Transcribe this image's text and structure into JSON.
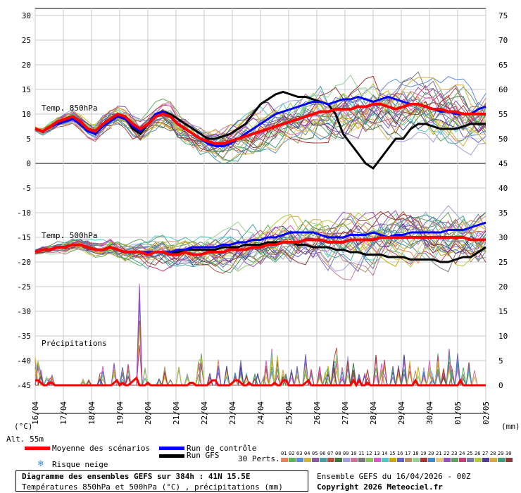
{
  "colors": {
    "mean": "#ff0000",
    "control": "#0000ff",
    "gfs": "#000000",
    "grid": "#c8c8c8",
    "zero_line": "#808080",
    "members": [
      "#e8825a",
      "#5ab45a",
      "#5a8cdc",
      "#d2b43c",
      "#8c5aa0",
      "#46a0a0",
      "#b4503c",
      "#3c783c",
      "#a0a0dc",
      "#c87896",
      "#787878",
      "#8cc85a",
      "#dc5ac8",
      "#50c8c8",
      "#c8aa00",
      "#6464c8",
      "#be8c64",
      "#96d296",
      "#aa3232",
      "#3c8cc8",
      "#e6c878",
      "#9650be",
      "#64a064",
      "#c83c78",
      "#7878aa",
      "#b4c83c",
      "#503c96",
      "#dcaa3c",
      "#3ca078",
      "#8c3c3c"
    ]
  },
  "chart_data": {
    "type": "line",
    "dates": [
      "16/04",
      "17/04",
      "18/04",
      "19/04",
      "20/04",
      "21/04",
      "22/04",
      "23/04",
      "24/04",
      "25/04",
      "26/04",
      "27/04",
      "28/04",
      "29/04",
      "30/04",
      "01/05",
      "02/05"
    ],
    "left_axis": {
      "unit": "(°C)",
      "ticks": [
        30,
        25,
        20,
        15,
        10,
        5,
        0,
        -5,
        -10,
        -15,
        -20,
        -25,
        -30,
        -35,
        -40,
        -45
      ],
      "range": [
        -45,
        30
      ]
    },
    "right_axis": {
      "unit": "(mm)",
      "ticks": [
        75,
        70,
        65,
        60,
        55,
        50,
        45,
        40,
        35,
        30,
        25,
        20,
        15,
        10,
        5,
        0
      ],
      "range": [
        0,
        75
      ]
    },
    "panels": [
      {
        "label": "Temp. 850hPa",
        "mean": [
          7,
          6.5,
          7.5,
          8.5,
          9,
          9.5,
          8.5,
          7,
          6.5,
          8,
          9,
          10,
          9.5,
          8,
          7,
          8,
          9.5,
          10,
          9.5,
          8,
          7,
          6,
          5,
          4.5,
          4,
          4,
          4.5,
          5,
          5.5,
          6,
          6.5,
          7,
          7.5,
          8,
          8.5,
          9,
          9.5,
          10,
          10.5,
          10.5,
          11,
          11,
          11,
          11.5,
          11.5,
          12,
          12,
          11.5,
          11,
          11.5,
          12,
          12,
          11.5,
          11,
          11,
          10.5,
          10.5,
          10,
          10,
          10,
          10
        ],
        "control": [
          7,
          6.5,
          7.5,
          8,
          8.5,
          9,
          8,
          6.5,
          6,
          7.5,
          8.5,
          9.5,
          9,
          7.5,
          6.5,
          8,
          10,
          10.5,
          9.5,
          8,
          7,
          6,
          5,
          4,
          3.5,
          3.5,
          4,
          5,
          6,
          7,
          8,
          9,
          10,
          10.5,
          11,
          11.5,
          12,
          12.5,
          12.5,
          12,
          12.5,
          13,
          13,
          13.5,
          13,
          12.5,
          13,
          13.5,
          13,
          12.5,
          12,
          12,
          11.5,
          11,
          10.5,
          10.5,
          10,
          10,
          10,
          11,
          11.5
        ],
        "gfs": [
          7,
          6.5,
          7.5,
          8,
          8.5,
          9,
          8,
          6.5,
          6,
          7.5,
          9,
          10,
          9.5,
          7,
          6,
          8,
          10,
          10.5,
          10,
          9,
          8,
          7,
          6,
          5,
          5,
          5.5,
          6,
          7,
          8,
          10,
          12,
          13,
          14,
          14.5,
          14,
          13.5,
          13.5,
          13,
          12.5,
          12,
          10,
          6,
          4,
          2,
          0,
          -1,
          1,
          3,
          5,
          5,
          7,
          8,
          8,
          7.5,
          7,
          7,
          7,
          7.5,
          8,
          8,
          8
        ]
      },
      {
        "label": "Temp. 500hPa",
        "mean": [
          -18,
          -17.5,
          -17.5,
          -17,
          -17,
          -16.5,
          -16.5,
          -17,
          -17.5,
          -17.5,
          -17,
          -17.5,
          -18,
          -18,
          -18,
          -18.5,
          -18,
          -18,
          -18.5,
          -18.5,
          -18,
          -18.5,
          -18.5,
          -18,
          -18,
          -18,
          -17.5,
          -17.5,
          -17.5,
          -17,
          -17,
          -16.5,
          -16.5,
          -16,
          -16,
          -16,
          -15.5,
          -15.5,
          -15.5,
          -16,
          -16,
          -16,
          -15.5,
          -15.5,
          -15.5,
          -15.5,
          -15,
          -15,
          -15,
          -15,
          -15,
          -15,
          -15,
          -15,
          -15,
          -15,
          -15,
          -15,
          -15.5,
          -15.5,
          -15.5
        ],
        "control": [
          -18,
          -17.5,
          -17.5,
          -17,
          -17,
          -16.5,
          -16.5,
          -17,
          -17.5,
          -17.5,
          -17,
          -17.5,
          -18,
          -18,
          -18,
          -18,
          -18,
          -18,
          -18,
          -17.5,
          -17.5,
          -17,
          -17,
          -17,
          -17,
          -16.5,
          -16.5,
          -16,
          -16,
          -15.5,
          -15.5,
          -15,
          -15,
          -14.5,
          -14,
          -14,
          -14,
          -14,
          -14.5,
          -15,
          -15,
          -15,
          -14.5,
          -14.5,
          -14.5,
          -14,
          -14.5,
          -15,
          -14.5,
          -14.5,
          -14,
          -14,
          -14,
          -14,
          -14,
          -13.5,
          -13.5,
          -13.5,
          -13,
          -12.5,
          -12
        ],
        "gfs": [
          -18,
          -17.5,
          -17.5,
          -17,
          -17,
          -16.5,
          -16.5,
          -17,
          -17.5,
          -17.5,
          -17,
          -17.5,
          -18,
          -18,
          -18,
          -18,
          -18,
          -18,
          -18,
          -18,
          -17.5,
          -17.5,
          -17.5,
          -17.5,
          -17.5,
          -17,
          -17,
          -17,
          -16.5,
          -16.5,
          -16.5,
          -16,
          -16,
          -16,
          -16,
          -16.5,
          -16.5,
          -17,
          -17,
          -17,
          -17.5,
          -17.5,
          -18,
          -18,
          -18.5,
          -18.5,
          -18.5,
          -19,
          -19,
          -19,
          -19.5,
          -19.5,
          -19.5,
          -19.5,
          -20,
          -20,
          -19.5,
          -19,
          -19,
          -18,
          -17
        ]
      },
      {
        "label": "Précipitations",
        "peaks": [
          [
            0,
            5
          ],
          [
            1,
            4
          ],
          [
            2,
            3
          ],
          [
            4,
            2
          ],
          [
            5,
            1
          ],
          [
            6,
            2
          ],
          [
            17,
            1
          ],
          [
            19,
            1
          ],
          [
            23,
            2
          ],
          [
            24,
            3
          ],
          [
            28,
            4
          ],
          [
            31,
            3
          ],
          [
            33,
            4
          ],
          [
            37,
            16
          ],
          [
            39,
            3
          ],
          [
            44,
            1
          ],
          [
            46,
            3
          ],
          [
            48,
            2
          ],
          [
            51,
            3
          ],
          [
            54,
            2
          ],
          [
            58,
            4
          ],
          [
            59,
            5
          ],
          [
            62,
            2
          ],
          [
            65,
            4
          ],
          [
            68,
            3
          ],
          [
            71,
            2
          ],
          [
            73,
            4
          ],
          [
            75,
            2
          ],
          [
            78,
            2
          ],
          [
            79,
            3
          ],
          [
            81,
            2
          ],
          [
            82,
            4
          ],
          [
            84,
            6
          ],
          [
            86,
            5
          ],
          [
            88,
            3
          ],
          [
            89,
            2
          ],
          [
            91,
            3
          ],
          [
            93,
            3
          ],
          [
            96,
            5
          ],
          [
            98,
            5
          ],
          [
            101,
            3
          ],
          [
            103,
            2
          ],
          [
            104,
            3
          ],
          [
            106,
            4
          ],
          [
            107,
            6
          ],
          [
            109,
            3
          ],
          [
            111,
            5
          ],
          [
            113,
            4
          ],
          [
            115,
            2
          ],
          [
            117,
            3
          ],
          [
            118,
            3
          ],
          [
            121,
            5
          ],
          [
            123,
            4
          ],
          [
            124,
            4
          ],
          [
            127,
            4
          ],
          [
            129,
            4
          ],
          [
            131,
            5
          ],
          [
            133,
            4
          ],
          [
            135,
            6
          ],
          [
            136,
            4
          ],
          [
            138,
            3
          ],
          [
            140,
            5
          ],
          [
            141,
            2
          ],
          [
            143,
            5
          ],
          [
            145,
            3
          ],
          [
            147,
            6
          ],
          [
            148,
            3
          ],
          [
            150,
            5
          ],
          [
            152,
            3
          ],
          [
            154,
            4
          ],
          [
            156,
            3
          ]
        ],
        "mean": [
          1,
          1,
          0.5,
          0,
          0,
          0.5,
          0.5,
          0,
          0,
          0,
          0,
          0,
          0,
          0,
          0,
          0,
          0,
          0,
          0,
          0,
          0,
          0,
          0,
          0,
          0,
          0,
          0,
          0,
          0.5,
          1,
          0,
          0.5,
          0,
          0,
          0.5,
          1,
          1.5,
          0,
          0,
          0,
          0.5,
          0,
          0,
          0,
          0,
          0,
          0,
          0,
          0,
          0,
          0,
          0,
          0,
          0,
          0,
          0.5,
          0.5,
          0,
          0,
          0,
          0,
          0,
          0.5,
          1,
          1,
          0,
          0,
          0,
          0,
          0,
          0.5,
          1,
          1,
          0.5,
          0,
          0,
          0.5,
          0,
          0,
          0,
          0,
          0,
          0,
          0,
          0,
          0.5,
          0,
          0,
          1,
          1,
          0,
          0,
          0,
          0,
          0,
          0,
          0.5,
          1,
          0,
          0,
          0,
          0,
          0,
          0,
          0,
          0,
          0,
          0,
          0,
          0,
          0,
          0,
          0,
          1,
          0,
          1,
          0,
          0,
          0.5,
          0,
          0,
          0,
          0,
          0,
          0,
          0,
          0,
          0,
          0,
          0,
          0,
          0,
          0,
          0,
          0,
          1,
          0,
          0,
          0,
          0,
          0,
          0,
          0,
          0,
          0,
          0,
          0,
          0,
          0,
          0,
          0,
          1,
          0,
          0,
          0,
          0,
          0,
          0,
          0,
          0,
          0
        ]
      }
    ]
  },
  "labels": {
    "left_unit": "(°C)",
    "right_unit": "(mm)",
    "alt": "Alt. 55m",
    "legend_mean": "Moyenne des scénarios",
    "legend_control": "Run de contrôle",
    "legend_gfs": "Run GFS",
    "legend_snow": "Risque neige",
    "perts": "30 Perts.",
    "member_numbers": [
      "01",
      "02",
      "03",
      "04",
      "05",
      "06",
      "07",
      "08",
      "09",
      "10",
      "11",
      "12",
      "13",
      "14",
      "15",
      "16",
      "17",
      "18",
      "19",
      "20",
      "21",
      "22",
      "23",
      "24",
      "25",
      "26",
      "27",
      "28",
      "29",
      "30"
    ],
    "box_title": "Diagramme des ensembles GEFS sur 384h : 41N 15.5E",
    "box_subtitle": "Températures 850hPa et 500hPa (°C) , précipitations (mm)",
    "run_info": "Ensemble GEFS du 16/04/2026 - 00Z",
    "copyright": "Copyright 2026 Meteociel.fr"
  }
}
